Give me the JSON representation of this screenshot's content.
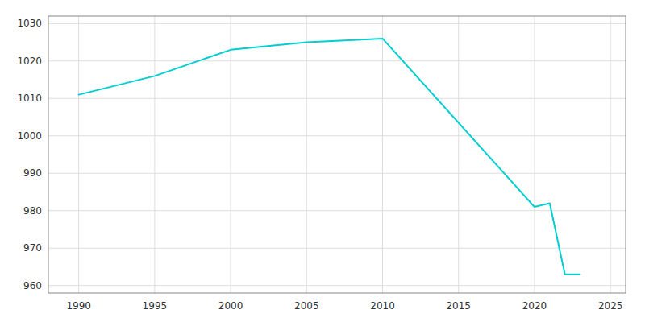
{
  "chart_data": {
    "type": "line",
    "x": [
      1990,
      1995,
      2000,
      2005,
      2010,
      2020,
      2021,
      2022,
      2023
    ],
    "values": [
      1011,
      1016,
      1023,
      1025,
      1026,
      981,
      982,
      963,
      963
    ],
    "color": "#00CED1",
    "xlim": [
      1988,
      2026
    ],
    "ylim": [
      958,
      1032
    ],
    "xticks": [
      1990,
      1995,
      2000,
      2005,
      2010,
      2015,
      2020,
      2025
    ],
    "yticks": [
      960,
      970,
      980,
      990,
      1000,
      1010,
      1020,
      1030
    ],
    "grid": true
  }
}
